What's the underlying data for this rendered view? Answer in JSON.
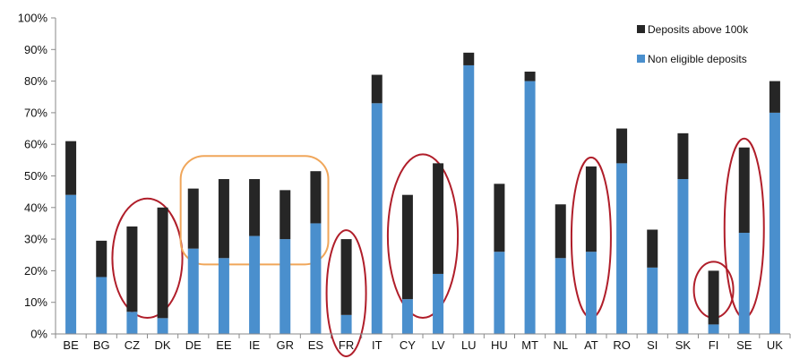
{
  "chart_data": {
    "type": "bar",
    "stacked": true,
    "categories": [
      "BE",
      "BG",
      "CZ",
      "DK",
      "DE",
      "EE",
      "IE",
      "GR",
      "ES",
      "FR",
      "IT",
      "CY",
      "LV",
      "LU",
      "HU",
      "MT",
      "NL",
      "AT",
      "RO",
      "SI",
      "SK",
      "FI",
      "SE",
      "UK"
    ],
    "series": [
      {
        "name": "Non eligible deposits",
        "color": "#4a8fcd",
        "values": [
          44,
          18,
          7,
          5,
          27,
          24,
          31,
          30,
          35,
          6,
          73,
          11,
          19,
          85,
          26,
          80,
          24,
          26,
          54,
          21,
          49,
          3,
          32,
          70
        ]
      },
      {
        "name": "Deposits above 100k",
        "color": "#262626",
        "values": [
          17,
          11.5,
          27,
          35,
          19,
          25,
          18,
          15.5,
          16.5,
          24,
          9,
          33,
          35,
          4,
          21.5,
          3,
          17,
          27,
          11,
          12,
          14.5,
          17,
          27,
          10
        ]
      }
    ],
    "yaxis": {
      "min": 0,
      "max": 100,
      "ticks": [
        "0%",
        "10%",
        "20%",
        "30%",
        "40%",
        "50%",
        "60%",
        "70%",
        "80%",
        "90%",
        "100%"
      ]
    },
    "legend_position": "top-right",
    "grid": false,
    "highlights": [
      {
        "categories": [
          "CZ",
          "DK"
        ],
        "color": "#b01e2a",
        "shape": "ellipse"
      },
      {
        "categories": [
          "DE",
          "EE",
          "IE",
          "GR",
          "ES"
        ],
        "color": "#f0a65a",
        "shape": "rounded-rect"
      },
      {
        "categories": [
          "FR"
        ],
        "color": "#b01e2a",
        "shape": "ellipse"
      },
      {
        "categories": [
          "CY",
          "LV"
        ],
        "color": "#b01e2a",
        "shape": "ellipse"
      },
      {
        "categories": [
          "AT"
        ],
        "color": "#b01e2a",
        "shape": "ellipse"
      },
      {
        "categories": [
          "FI"
        ],
        "color": "#b01e2a",
        "shape": "ellipse"
      },
      {
        "categories": [
          "SE"
        ],
        "color": "#b01e2a",
        "shape": "ellipse"
      }
    ]
  }
}
